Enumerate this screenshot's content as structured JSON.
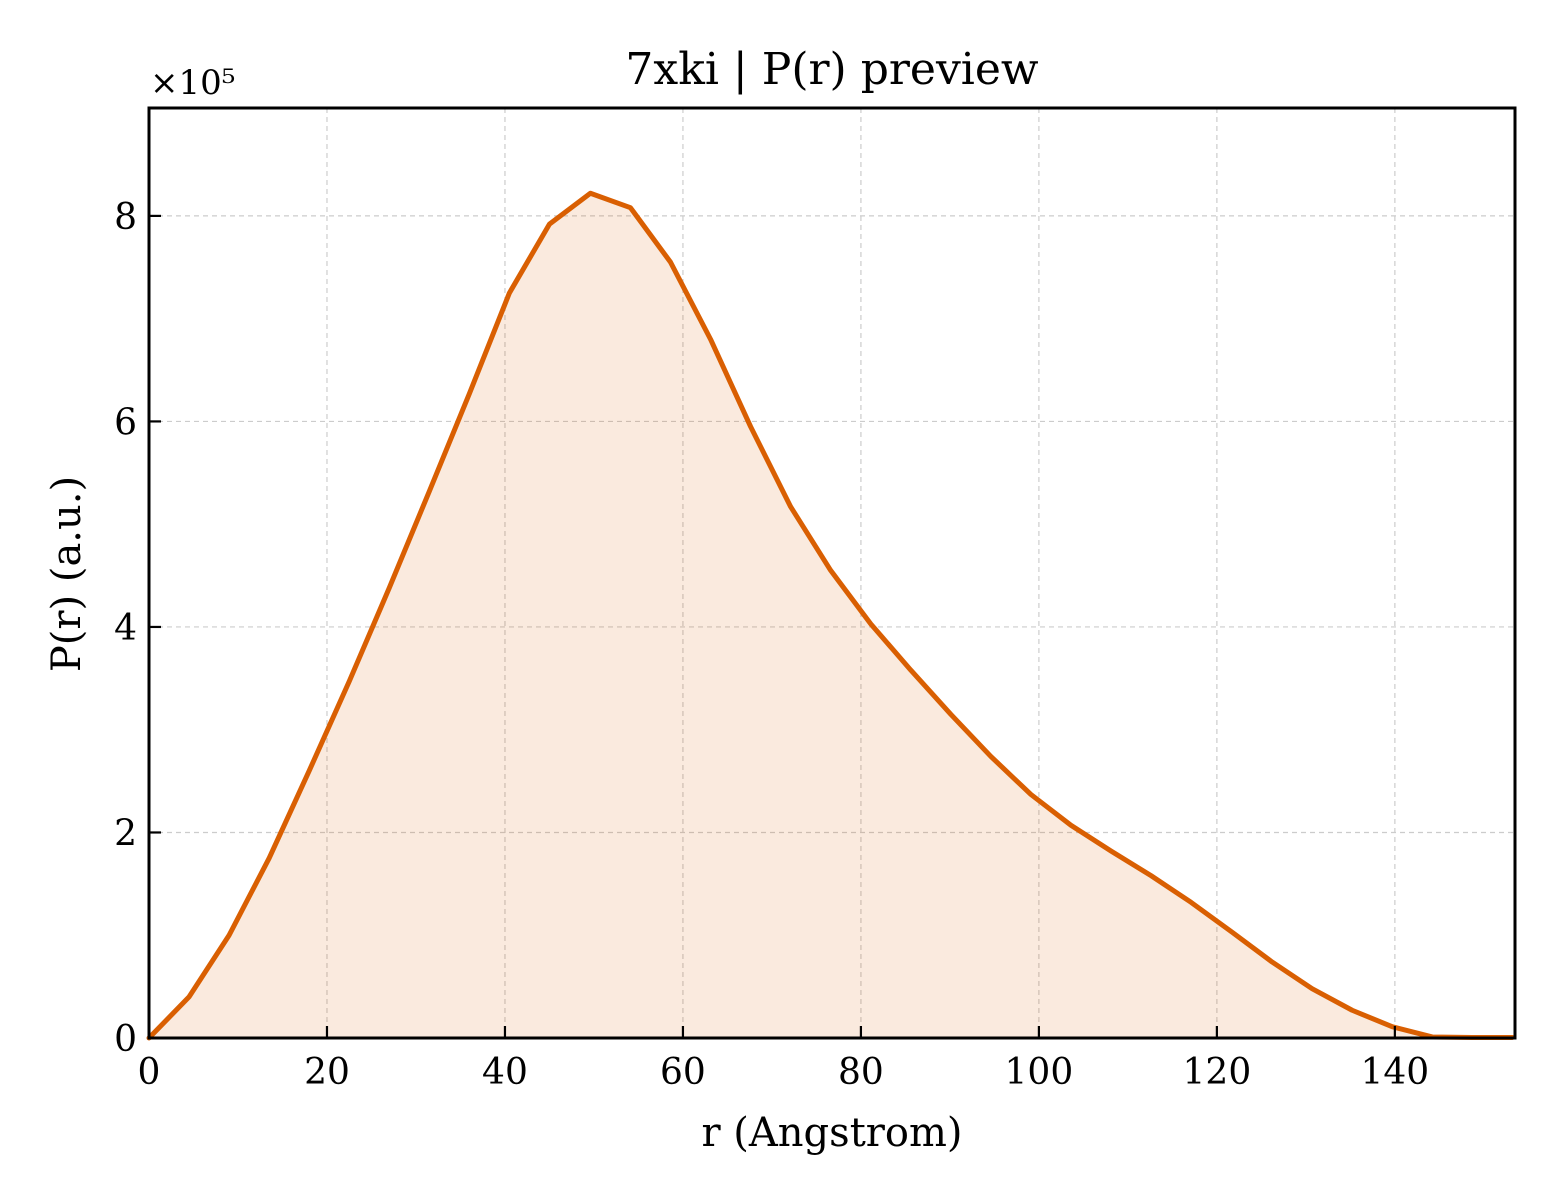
{
  "chart_data": {
    "type": "area",
    "title": "7xki | P(r) preview",
    "xlabel": "r (Angstrom)",
    "ylabel": "P(r) (a.u.)",
    "y_multiplier_label": "×10⁵",
    "xlim": [
      0,
      153.5
    ],
    "ylim": [
      0,
      9.05
    ],
    "y_unit_scale": 100000,
    "x_ticks": [
      0,
      20,
      40,
      60,
      80,
      100,
      120,
      140
    ],
    "y_ticks": [
      0,
      2,
      4,
      6,
      8
    ],
    "grid": true,
    "legend": "none",
    "colors": {
      "line": "#d95f02",
      "fill": "#d95f02",
      "fill_opacity": 0.13,
      "grid": "#cccccc",
      "axes": "#000000"
    },
    "series": [
      {
        "x": [
          0,
          4.5,
          9.0,
          13.5,
          18.0,
          22.5,
          27.0,
          31.5,
          36.0,
          40.5,
          45.0,
          49.6,
          54.1,
          58.6,
          63.1,
          67.6,
          72.1,
          76.6,
          81.1,
          85.6,
          90.1,
          94.6,
          99.1,
          103.6,
          108.1,
          112.6,
          117.1,
          121.7,
          126.2,
          130.7,
          135.2,
          139.7,
          144.2,
          148.7,
          153.2
        ],
        "y": [
          0.0,
          0.4,
          1.0,
          1.75,
          2.6,
          3.47,
          4.38,
          5.32,
          6.27,
          7.25,
          7.92,
          8.22,
          8.08,
          7.55,
          6.8,
          5.95,
          5.17,
          4.55,
          4.03,
          3.58,
          3.15,
          2.74,
          2.37,
          2.07,
          1.82,
          1.58,
          1.32,
          1.03,
          0.74,
          0.48,
          0.27,
          0.11,
          0.01,
          0.005,
          0.005
        ]
      }
    ]
  }
}
